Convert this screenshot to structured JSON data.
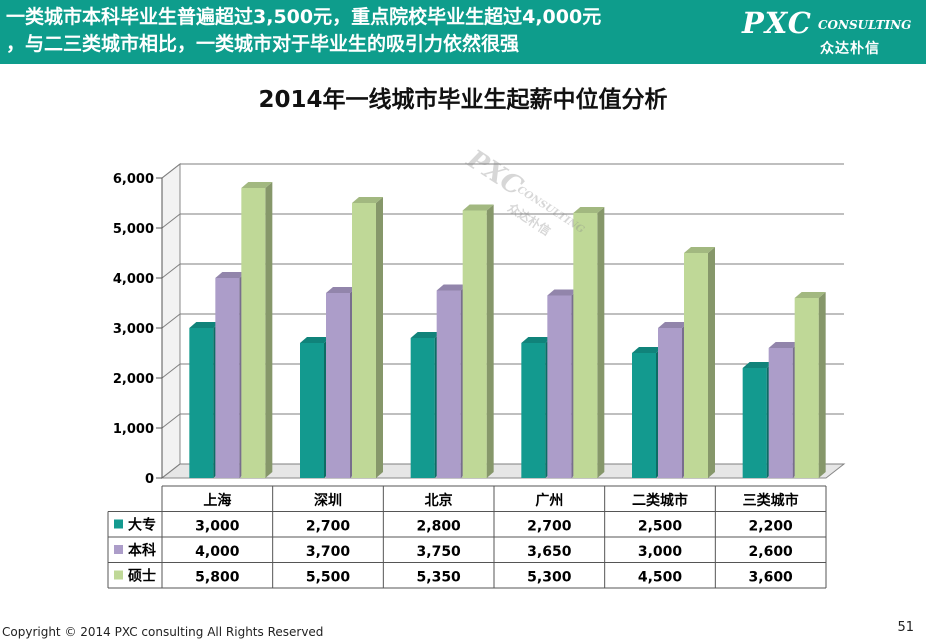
{
  "header": {
    "headline_line1": "一类城市本科毕业生普遍超过3,500元，重点院校毕业生超过4,000元",
    "headline_line2": "，与二三类城市相比，一类城市对于毕业生的吸引力依然很强",
    "logo_main": "PXC",
    "logo_sub": "CONSULTING",
    "logo_cn": "众达朴信"
  },
  "watermark": {
    "main": "PXC",
    "sub": "CONSULTING",
    "cn": "众达朴信"
  },
  "footer": {
    "copyright": "Copyright © 2014 PXC consulting All Rights Reserved",
    "page_number": "51"
  },
  "colors": {
    "header_bg": "#0e9d8c",
    "dazhuan": "#139a8f",
    "benke": "#ac9dc9",
    "shuoshi": "#bfd897"
  },
  "chart_data": {
    "type": "bar",
    "title": "2014年一线城市毕业生起薪中位值分析",
    "categories": [
      "上海",
      "深圳",
      "北京",
      "广州",
      "二类城市",
      "三类城市"
    ],
    "series": [
      {
        "name": "大专",
        "values": [
          3000,
          2700,
          2800,
          2700,
          2500,
          2200
        ]
      },
      {
        "name": "本科",
        "values": [
          4000,
          3700,
          3750,
          3650,
          3000,
          2600
        ]
      },
      {
        "name": "硕士",
        "values": [
          5800,
          5500,
          5350,
          5300,
          4500,
          3600
        ]
      }
    ],
    "value_labels": [
      [
        "3,000",
        "2,700",
        "2,800",
        "2,700",
        "2,500",
        "2,200"
      ],
      [
        "4,000",
        "3,700",
        "3,750",
        "3,650",
        "3,000",
        "2,600"
      ],
      [
        "5,800",
        "5,500",
        "5,350",
        "5,300",
        "4,500",
        "3,600"
      ]
    ],
    "ylim": [
      0,
      6000
    ],
    "yticks": [
      0,
      1000,
      2000,
      3000,
      4000,
      5000,
      6000
    ],
    "ytick_labels": [
      "0",
      "1,000",
      "2,000",
      "3,000",
      "4,000",
      "5,000",
      "6,000"
    ],
    "grid": true,
    "legend": "data-table",
    "xlabel": "",
    "ylabel": ""
  }
}
